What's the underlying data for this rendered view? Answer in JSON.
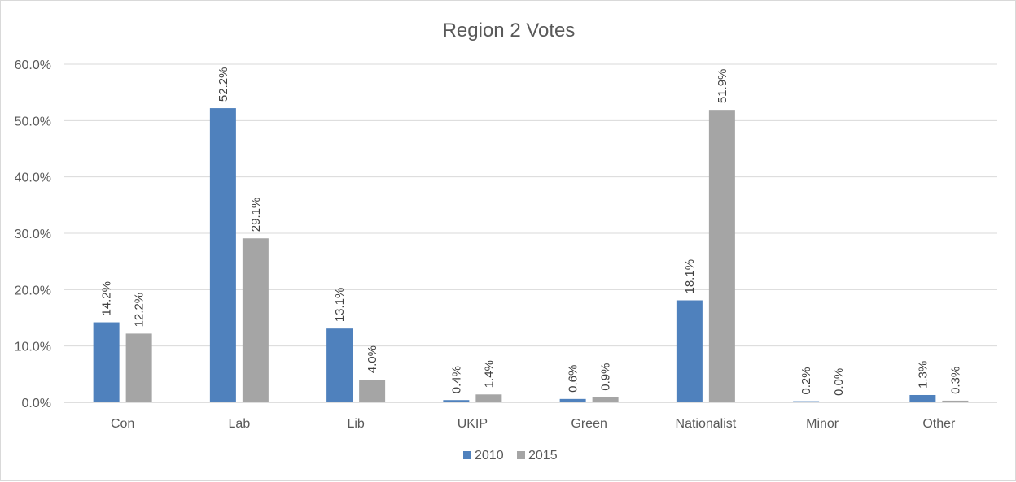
{
  "chart_data": {
    "type": "bar",
    "title": "Region 2 Votes",
    "categories": [
      "Con",
      "Lab",
      "Lib",
      "UKIP",
      "Green",
      "Nationalist",
      "Minor",
      "Other"
    ],
    "series": [
      {
        "name": "2010",
        "color": "#4f81bd",
        "values": [
          14.2,
          52.2,
          13.1,
          0.4,
          0.6,
          18.1,
          0.2,
          1.3
        ],
        "labels": [
          "14.2%",
          "52.2%",
          "13.1%",
          "0.4%",
          "0.6%",
          "18.1%",
          "0.2%",
          "1.3%"
        ]
      },
      {
        "name": "2015",
        "color": "#a5a5a5",
        "values": [
          12.2,
          29.1,
          4.0,
          1.4,
          0.9,
          51.9,
          0.0,
          0.3
        ],
        "labels": [
          "12.2%",
          "29.1%",
          "4.0%",
          "1.4%",
          "0.9%",
          "51.9%",
          "0.0%",
          "0.3%"
        ]
      }
    ],
    "y_ticks": [
      "0.0%",
      "10.0%",
      "20.0%",
      "30.0%",
      "40.0%",
      "50.0%",
      "60.0%"
    ],
    "ylim": [
      0,
      60
    ],
    "grid": true,
    "legend_position": "bottom"
  }
}
